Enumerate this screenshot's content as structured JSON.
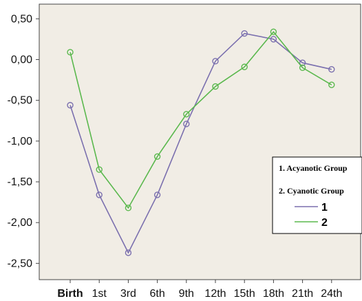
{
  "chart_data": {
    "type": "line",
    "categories": [
      "Birth",
      "1st",
      "3rd",
      "6th",
      "9th",
      "12th",
      "15th",
      "18th",
      "21th",
      "24th"
    ],
    "bold_categories": [
      "Birth"
    ],
    "y_ticks": [
      "0,50",
      "0,00",
      "-0,50",
      "-1,00",
      "-1,50",
      "-2,00",
      "-2,50"
    ],
    "ylim": [
      -2.7,
      0.68
    ],
    "y_tick_values": [
      0.5,
      0.0,
      -0.5,
      -1.0,
      -1.5,
      -2.0,
      -2.5
    ],
    "series": [
      {
        "name": "1",
        "color": "#7a6fae",
        "values": [
          -0.56,
          -1.66,
          -2.37,
          -1.66,
          -0.79,
          -0.02,
          0.32,
          0.25,
          -0.04,
          -0.12
        ]
      },
      {
        "name": "2",
        "color": "#5ab84d",
        "values": [
          0.09,
          -1.35,
          -1.82,
          -1.19,
          -0.67,
          -0.33,
          -0.09,
          0.34,
          -0.1,
          -0.31
        ]
      }
    ],
    "legend": {
      "placement": "right",
      "line1": "1. Acyanotic Group",
      "line2": "2. Cyanotic Group"
    },
    "grid": false,
    "plot_background": "#f1ede5"
  }
}
